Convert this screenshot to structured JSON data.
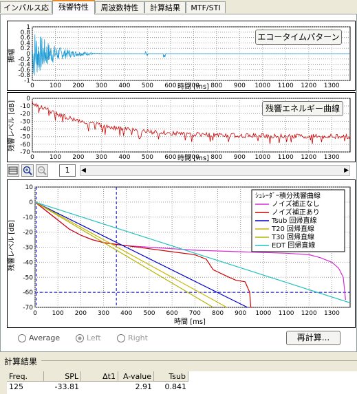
{
  "tabs": [
    {
      "label": "インパルス応答",
      "active": false
    },
    {
      "label": "残響特性",
      "active": true
    },
    {
      "label": "周波数特性",
      "active": false
    },
    {
      "label": "計算結果",
      "active": false
    },
    {
      "label": "MTF/STI",
      "active": false
    }
  ],
  "echo_panel": {
    "button_label": "エコータイムパターン",
    "ylabel": "振幅",
    "xlabel": "時間 [ms]",
    "yticks": [
      "1",
      "0.8",
      "0.6",
      "0.4",
      "0.2",
      "0",
      "-0.2",
      "-0.4",
      "-0.6",
      "-0.8",
      "-1"
    ],
    "xticks": [
      "0",
      "100",
      "200",
      "300",
      "400",
      "500",
      "600",
      "700",
      "800",
      "900",
      "1000",
      "1100",
      "1200",
      "1300"
    ],
    "color": "#1a9ad6"
  },
  "energy_panel": {
    "button_label": "残響エネルギー曲線",
    "ylabel": "残響レベル [dB]",
    "xlabel": "時間 [ms]",
    "yticks": [
      "0",
      "-10",
      "-20",
      "-30",
      "-40",
      "-50",
      "-60",
      "-70"
    ],
    "xticks": [
      "0",
      "100",
      "200",
      "300",
      "400",
      "500",
      "600",
      "700",
      "800",
      "900",
      "1000",
      "1100",
      "1200",
      "1300"
    ],
    "color": "#cc0000"
  },
  "toolbar": {
    "page_value": "1",
    "icons": [
      "grid-icon",
      "zoom-in-icon",
      "zoom-out-icon"
    ]
  },
  "chart_data": {
    "type": "line",
    "ylabel": "残響レベル [dB]",
    "xlabel": "時間 [ms]",
    "xlim": [
      0,
      1380
    ],
    "ylim": [
      -70,
      10
    ],
    "xticks": [
      0,
      100,
      200,
      300,
      400,
      500,
      600,
      700,
      800,
      900,
      1000,
      1100,
      1200,
      1300
    ],
    "yticks": [
      10,
      0,
      -10,
      -20,
      -30,
      -40,
      -50,
      -60,
      -70
    ],
    "grid": true,
    "legend_title": "ｼｭﾚｰﾀﾞｰ積分残響曲線",
    "legend_position": "top-right",
    "series": [
      {
        "name": "ノイズ補正なし",
        "color": "#d62ad6",
        "x": [
          0,
          50,
          100,
          150,
          200,
          250,
          300,
          350,
          400,
          500,
          600,
          700,
          800,
          900,
          1000,
          1100,
          1200,
          1250,
          1300,
          1330,
          1350,
          1360
        ],
        "y": [
          0,
          -6,
          -12,
          -18,
          -22,
          -25,
          -27,
          -28,
          -29,
          -30,
          -31,
          -32,
          -32.5,
          -33,
          -33.5,
          -34,
          -35,
          -37,
          -40,
          -44,
          -50,
          -65
        ]
      },
      {
        "name": "ノイズ補正あり",
        "color": "#cc0000",
        "x": [
          0,
          50,
          100,
          150,
          200,
          250,
          300,
          350,
          400,
          500,
          600,
          700,
          750,
          780,
          850,
          880,
          920,
          940,
          945,
          950
        ],
        "y": [
          0,
          -6,
          -12,
          -18,
          -22,
          -25,
          -27,
          -28,
          -29,
          -31,
          -33,
          -35,
          -38,
          -45,
          -50,
          -52,
          -53,
          -60,
          -70,
          -70
        ]
      },
      {
        "name": "Tsub 回帰直線",
        "color": "#0000cc",
        "x": [
          0,
          930
        ],
        "y": [
          0,
          -70
        ]
      },
      {
        "name": "T20 回帰直線",
        "color": "#c8b400",
        "x": [
          0,
          840
        ],
        "y": [
          0,
          -70
        ]
      },
      {
        "name": "T30 回帰直線",
        "color": "#b4b400",
        "x": [
          0,
          780
        ],
        "y": [
          0,
          -70
        ]
      },
      {
        "name": "EDT 回帰直線",
        "color": "#22c0c0",
        "x": [
          0,
          1380
        ],
        "y": [
          0,
          -67
        ]
      }
    ],
    "reference_lines": {
      "horizontal_db": -60,
      "vertical_ms": [
        0,
        350
      ]
    }
  },
  "radios": [
    {
      "label": "Average",
      "checked": false,
      "enabled": true
    },
    {
      "label": "Left",
      "checked": true,
      "enabled": false
    },
    {
      "label": "Right",
      "checked": false,
      "enabled": false
    }
  ],
  "recalc_button": "再計算...",
  "results": {
    "section_title": "計算結果",
    "headers": [
      "Freq.",
      "SPL",
      "Δt1",
      "A-value",
      "Tsub"
    ],
    "rows": [
      [
        "125",
        "-33.81",
        "",
        "2.91",
        "0.841"
      ]
    ]
  }
}
